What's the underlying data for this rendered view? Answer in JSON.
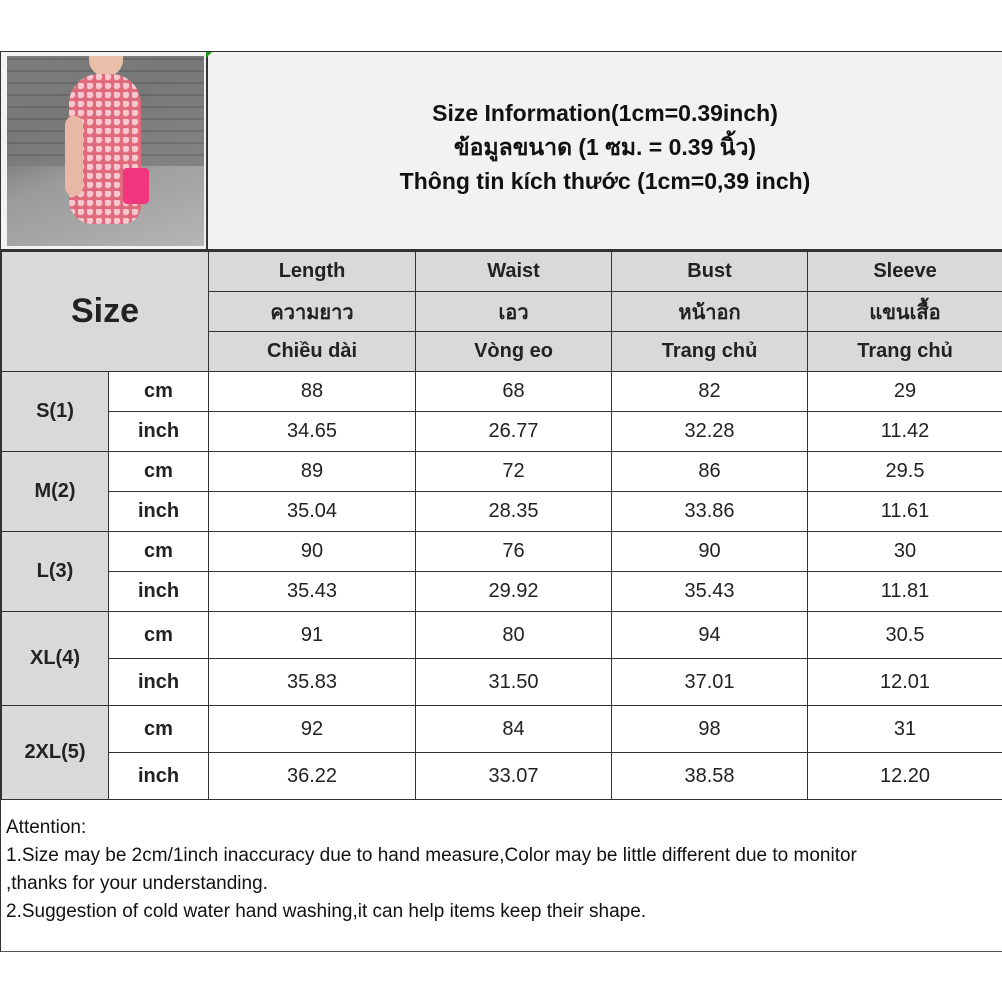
{
  "titles": [
    "Size Information(1cm=0.39inch)",
    "ข้อมูลขนาด (1 ซม. = 0.39 นิ้ว)",
    "Thông tin kích thước (1cm=0,39 inch)"
  ],
  "size_label": "Size",
  "columns": [
    {
      "en": "Length",
      "th": "ความยาว",
      "vi": "Chiều dài"
    },
    {
      "en": "Waist",
      "th": "เอว",
      "vi": "Vòng eo"
    },
    {
      "en": "Bust",
      "th": "หน้าอก",
      "vi": "Trang chủ"
    },
    {
      "en": "Sleeve",
      "th": "แขนเสื้อ",
      "vi": "Trang chủ"
    }
  ],
  "rows": [
    {
      "size": "S(1)",
      "cm_label": "cm",
      "inch_label": "inch",
      "cm": [
        "88",
        "68",
        "82",
        "29"
      ],
      "inch": [
        "34.65",
        "26.77",
        "32.28",
        "11.42"
      ]
    },
    {
      "size": "M(2)",
      "cm_label": "cm",
      "inch_label": "inch",
      "cm": [
        "89",
        "72",
        "86",
        "29.5"
      ],
      "inch": [
        "35.04",
        "28.35",
        "33.86",
        "11.61"
      ]
    },
    {
      "size": "L(3)",
      "cm_label": "cm",
      "inch_label": "inch",
      "cm": [
        "90",
        "76",
        "90",
        "30"
      ],
      "inch": [
        "35.43",
        "29.92",
        "35.43",
        "11.81"
      ]
    },
    {
      "size": "XL(4)",
      "cm_label": "cm",
      "inch_label": "inch",
      "cm": [
        "91",
        "80",
        "94",
        "30.5"
      ],
      "inch": [
        "35.83",
        "31.50",
        "37.01",
        "12.01"
      ]
    },
    {
      "size": "2XL(5)",
      "cm_label": "cm",
      "inch_label": "inch",
      "cm": [
        "92",
        "84",
        "98",
        "31"
      ],
      "inch": [
        "36.22",
        "33.07",
        "38.58",
        "12.20"
      ]
    }
  ],
  "notes": [
    "Attention:",
    "1.Size may be 2cm/1inch inaccuracy due to hand measure,Color may be little different due to monitor",
    ",thanks for your understanding.",
    "2.Suggestion of cold water hand washing,it can help items keep their shape."
  ]
}
